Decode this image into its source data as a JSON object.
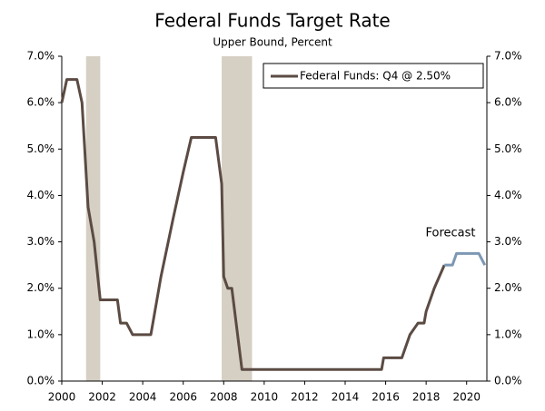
{
  "chart_data": {
    "type": "line",
    "title": "Federal Funds Target Rate",
    "subtitle": "Upper Bound, Percent",
    "annotation": "Forecast",
    "legend": "top-right",
    "shaded_periods": [
      [
        2001.2,
        2001.9
      ],
      [
        2007.9,
        2009.4
      ]
    ],
    "shade_color": "#d6d0c4",
    "xlim": [
      2000,
      2021
    ],
    "xticks": [
      2000,
      2002,
      2004,
      2006,
      2008,
      2010,
      2012,
      2014,
      2016,
      2018,
      2020
    ],
    "ylim": [
      0,
      7
    ],
    "yticks": [
      {
        "value": 0,
        "label": "0.0%"
      },
      {
        "value": 1,
        "label": "1.0%"
      },
      {
        "value": 2,
        "label": "2.0%"
      },
      {
        "value": 3,
        "label": "3.0%"
      },
      {
        "value": 4,
        "label": "4.0%"
      },
      {
        "value": 5,
        "label": "5.0%"
      },
      {
        "value": 6,
        "label": "6.0%"
      },
      {
        "value": 7,
        "label": "7.0%"
      }
    ],
    "y2lim": [
      0,
      7
    ],
    "y2ticks": [
      {
        "value": 0,
        "label": "0.0%"
      },
      {
        "value": 1,
        "label": "1.0%"
      },
      {
        "value": 2,
        "label": "2.0%"
      },
      {
        "value": 3,
        "label": "3.0%"
      },
      {
        "value": 4,
        "label": "4.0%"
      },
      {
        "value": 5,
        "label": "5.0%"
      },
      {
        "value": 6,
        "label": "6.0%"
      },
      {
        "value": 7,
        "label": "7.0%"
      }
    ],
    "series": [
      {
        "name": "Federal Funds: Q4 @ 2.50%",
        "color": "#5b4b43",
        "x": [
          2000,
          2000.25,
          2000.75,
          2001,
          2001.3,
          2001.6,
          2001.9,
          2002.75,
          2002.9,
          2003.2,
          2003.5,
          2004.4,
          2004.5,
          2004.9,
          2005.5,
          2006.0,
          2006.4,
          2007.6,
          2007.9,
          2008.0,
          2008.2,
          2008.4,
          2008.9,
          2015.8,
          2015.9,
          2016.8,
          2017.2,
          2017.6,
          2017.9,
          2018.0,
          2018.4,
          2018.9
        ],
        "values": [
          6.0,
          6.5,
          6.5,
          6.0,
          3.75,
          3.0,
          1.75,
          1.75,
          1.25,
          1.25,
          1.0,
          1.0,
          1.25,
          2.25,
          3.5,
          4.5,
          5.25,
          5.25,
          4.25,
          2.25,
          2.0,
          2.0,
          0.25,
          0.25,
          0.5,
          0.5,
          1.0,
          1.25,
          1.25,
          1.5,
          2.0,
          2.5
        ]
      },
      {
        "color": "#7c98b4",
        "x": [
          2018.9,
          2019.3,
          2019.5,
          2020.6,
          2020.9
        ],
        "values": [
          2.5,
          2.5,
          2.75,
          2.75,
          2.5
        ]
      }
    ]
  }
}
